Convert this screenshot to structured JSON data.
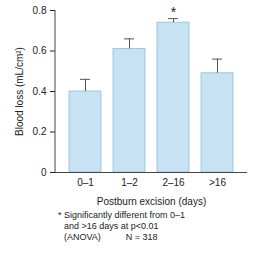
{
  "chart_data": {
    "type": "bar",
    "categories": [
      "0–1",
      "1–2",
      "2–16",
      ">16"
    ],
    "values": [
      0.4,
      0.61,
      0.74,
      0.49
    ],
    "errors": [
      0.06,
      0.05,
      0.02,
      0.07
    ],
    "color": "#c6e2f3",
    "ylim": [
      0,
      0.8
    ],
    "yticks": [
      0,
      0.2,
      0.4,
      0.6,
      0.8
    ],
    "y_label": "Blood loss (mL/cm²)",
    "x_label": "Postburn excision (days)",
    "annotations": [
      {
        "category": "2–16",
        "text": "*"
      }
    ],
    "notes": [
      "* Significantly different from 0–1",
      "and >16 days at p<0.01",
      "(ANOVA)          N = 318"
    ],
    "grid": false
  }
}
